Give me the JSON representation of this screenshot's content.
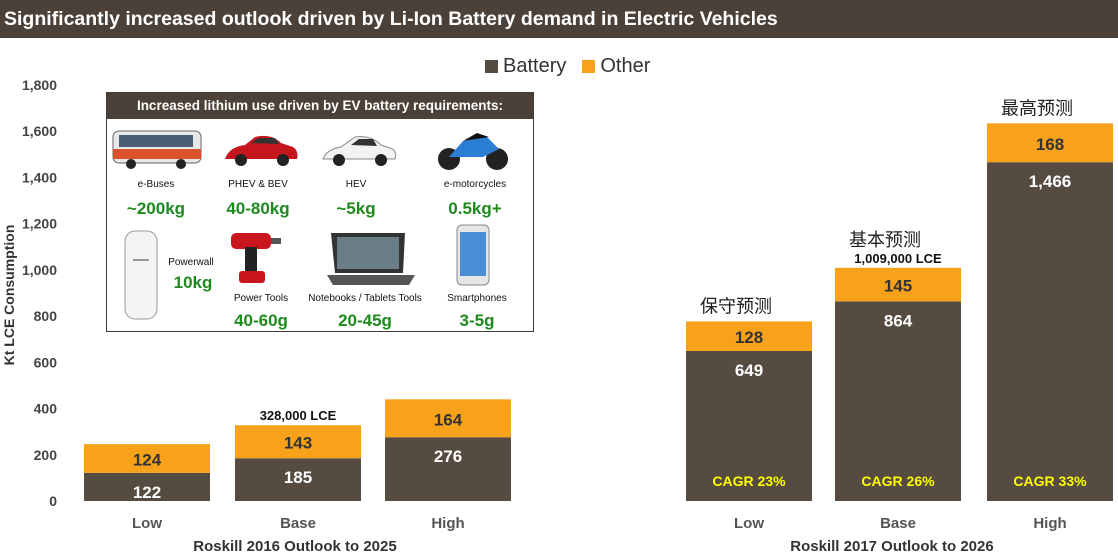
{
  "title": "Significantly increased outlook driven by Li-Ion Battery demand in Electric Vehicles",
  "legend": [
    {
      "label": "Battery",
      "color": "#554b40"
    },
    {
      "label": "Other",
      "color": "#f7a21a"
    }
  ],
  "chart_data": {
    "type": "bar",
    "stacked": true,
    "ylabel": "Kt LCE Consumption",
    "ylim": [
      0,
      1800
    ],
    "yticks": [
      "0",
      "200",
      "400",
      "600",
      "800",
      "1,000",
      "1,200",
      "1,400",
      "1,600",
      "1,800"
    ],
    "grid": false,
    "legend_position": "top-center",
    "categories": [
      "Low",
      "Base",
      "High",
      "Low",
      "Base",
      "High"
    ],
    "groups": [
      {
        "label": "Roskill 2016 Outlook to 2025",
        "categories": [
          "Low",
          "Base",
          "High"
        ]
      },
      {
        "label": "Roskill 2017 Outlook to 2026",
        "categories": [
          "Low",
          "Base",
          "High"
        ]
      }
    ],
    "series": [
      {
        "name": "Battery",
        "color": "#554b40",
        "values": [
          122,
          185,
          276,
          649,
          864,
          1466
        ],
        "labels": [
          "122",
          "185",
          "276",
          "649",
          "864",
          "1,466"
        ]
      },
      {
        "name": "Other",
        "color": "#f7a21a",
        "values": [
          124,
          143,
          164,
          128,
          145,
          168
        ],
        "labels": [
          "124",
          "143",
          "164",
          "128",
          "145",
          "168"
        ]
      }
    ],
    "cagr_labels": [
      "",
      "",
      "",
      "CAGR 23%",
      "CAGR 26%",
      "CAGR 33%"
    ],
    "total_labels": [
      "",
      "328,000 LCE",
      "",
      "",
      "1,009,000 LCE",
      ""
    ],
    "scenario_labels": [
      "",
      "",
      "",
      "保守预测",
      "基本预测",
      "最高预测"
    ]
  },
  "inset": {
    "heading": "Increased lithium use driven by EV battery requirements:",
    "items": [
      {
        "label": "e-Buses",
        "value": "~200kg",
        "icon": "bus-icon"
      },
      {
        "label": "PHEV & BEV",
        "value": "40-80kg",
        "icon": "car-icon"
      },
      {
        "label": "HEV",
        "value": "~5kg",
        "icon": "car-icon"
      },
      {
        "label": "e-motorcycles",
        "value": "0.5kg+",
        "icon": "motorcycle-icon"
      },
      {
        "label": "Powerwall",
        "value": "10kg",
        "icon": "battery-wall-icon"
      },
      {
        "label": "Power Tools",
        "value": "40-60g",
        "icon": "drill-icon"
      },
      {
        "label": "Notebooks / Tablets Tools",
        "value": "20-45g",
        "icon": "tablet-icon"
      },
      {
        "label": "Smartphones",
        "value": "3-5g",
        "icon": "smartphone-icon"
      }
    ]
  }
}
